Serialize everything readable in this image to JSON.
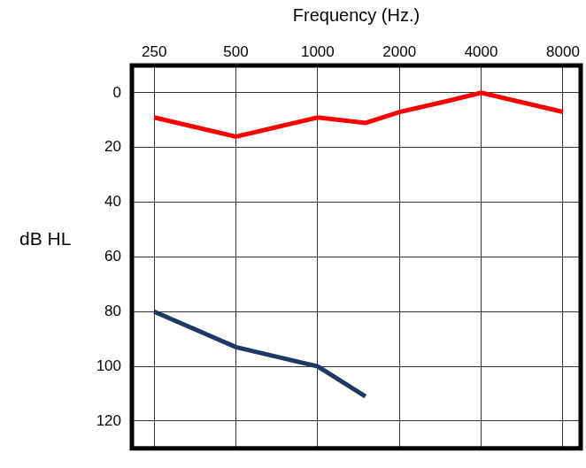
{
  "chart_data": {
    "type": "line",
    "xlabel": "Frequency (Hz.)",
    "ylabel": "dB HL",
    "log": "x",
    "grid": true,
    "marker": "none",
    "xlim": [
      207,
      9300
    ],
    "xticks": [
      250,
      500,
      1000,
      2000,
      4000,
      8000
    ],
    "ylim": [
      130,
      -10
    ],
    "yticks": [
      0,
      20,
      40,
      60,
      80,
      100,
      120
    ],
    "series": [
      {
        "color": "#ff0000",
        "x": [
          250,
          500,
          1000,
          1500,
          2000,
          3000,
          4000,
          8000
        ],
        "values": [
          9,
          16,
          9,
          11,
          7,
          3,
          0,
          7
        ]
      },
      {
        "color": "#1f3864",
        "x": [
          250,
          500,
          1000,
          1500
        ],
        "values": [
          80,
          93,
          100,
          111
        ]
      }
    ]
  }
}
